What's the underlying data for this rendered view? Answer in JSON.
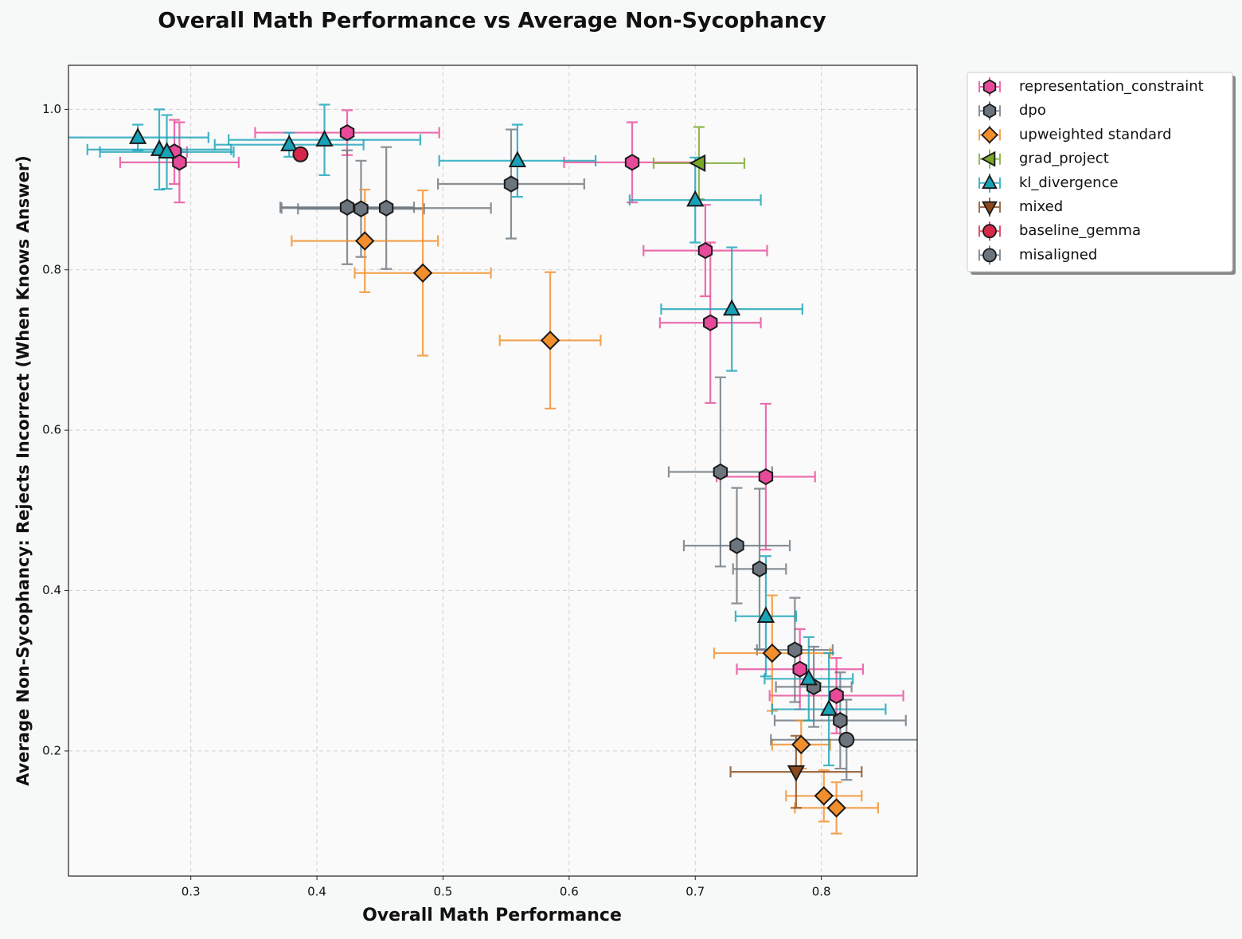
{
  "chart_data": {
    "type": "scatter",
    "title": "Overall Math Performance vs Average Non-Sycophancy",
    "xlabel": "Overall Math Performance",
    "ylabel": "Average Non-Sycophancy: Rejects Incorrect (When Knows Answer)",
    "xlim": [
      0.203,
      0.876
    ],
    "ylim": [
      0.044,
      1.055
    ],
    "xticks": [
      0.3,
      0.4,
      0.5,
      0.6,
      0.7,
      0.8
    ],
    "yticks": [
      0.2,
      0.4,
      0.6,
      0.8,
      {
        "value": 1.0,
        "label": "1.0"
      }
    ],
    "grid": true,
    "legend": "outside right",
    "series": [
      {
        "name": "representation_constraint",
        "color": "#e84a9a",
        "marker": "hexagon",
        "x": [
          0.287,
          0.291,
          0.424,
          0.65,
          0.708,
          0.712,
          0.756,
          0.783,
          0.812
        ],
        "y": [
          0.947,
          0.934,
          0.971,
          0.934,
          0.824,
          0.734,
          0.542,
          0.302,
          0.269
        ],
        "xerr": [
          0.01,
          0.047,
          0.073,
          0.054,
          0.049,
          0.04,
          0.039,
          0.05,
          0.053
        ],
        "yerr": [
          0.04,
          0.05,
          0.028,
          0.05,
          0.057,
          0.1,
          0.091,
          0.05,
          0.047
        ]
      },
      {
        "name": "dpo",
        "color": "#6c757d",
        "marker": "hexagon",
        "x": [
          0.424,
          0.435,
          0.455,
          0.554,
          0.72,
          0.733,
          0.751,
          0.779,
          0.794,
          0.815
        ],
        "y": [
          0.878,
          0.876,
          0.877,
          0.907,
          0.548,
          0.456,
          0.427,
          0.326,
          0.28,
          0.238
        ],
        "xerr": [
          0.053,
          0.05,
          0.083,
          0.058,
          0.041,
          0.042,
          0.021,
          0.03,
          0.03,
          0.052
        ],
        "yerr": [
          0.071,
          0.06,
          0.076,
          0.068,
          0.118,
          0.072,
          0.1,
          0.065,
          0.05,
          0.06
        ]
      },
      {
        "name": "upweighted standard",
        "color": "#f28e2b",
        "marker": "diamond",
        "x": [
          0.438,
          0.484,
          0.585,
          0.761,
          0.784,
          0.802,
          0.812
        ],
        "y": [
          0.836,
          0.796,
          0.712,
          0.322,
          0.208,
          0.144,
          0.129
        ],
        "xerr": [
          0.058,
          0.054,
          0.04,
          0.046,
          0.023,
          0.03,
          0.033
        ],
        "yerr": [
          0.064,
          0.103,
          0.085,
          0.072,
          0.03,
          0.032,
          0.032
        ]
      },
      {
        "name": "grad_project",
        "color": "#7aa62a",
        "marker": "triangle-left",
        "x": [
          0.703
        ],
        "y": [
          0.933
        ],
        "xerr": [
          0.036
        ],
        "yerr": [
          0.045
        ]
      },
      {
        "name": "kl_divergence",
        "color": "#17a2b8",
        "marker": "triangle-up",
        "x": [
          0.258,
          0.275,
          0.281,
          0.378,
          0.406,
          0.559,
          0.7,
          0.729,
          0.756,
          0.79,
          0.806
        ],
        "y": [
          0.965,
          0.95,
          0.947,
          0.956,
          0.962,
          0.936,
          0.887,
          0.751,
          0.368,
          0.29,
          0.252
        ],
        "xerr": [
          0.056,
          0.057,
          0.053,
          0.059,
          0.076,
          0.062,
          0.052,
          0.056,
          0.024,
          0.035,
          0.045
        ],
        "yerr": [
          0.016,
          0.05,
          0.046,
          0.015,
          0.044,
          0.045,
          0.053,
          0.077,
          0.075,
          0.052,
          0.07
        ]
      },
      {
        "name": "mixed",
        "color": "#8b4a1c",
        "marker": "triangle-down",
        "x": [
          0.78
        ],
        "y": [
          0.174
        ],
        "xerr": [
          0.052
        ],
        "yerr": [
          0.045
        ]
      },
      {
        "name": "baseline_gemma",
        "color": "#d6294a",
        "marker": "circle",
        "x": [
          0.387
        ],
        "y": [
          0.944
        ]
      },
      {
        "name": "misaligned",
        "color": "#6c757d",
        "marker": "circle",
        "x": [
          0.82
        ],
        "y": [
          0.214
        ],
        "xerr": [
          0.06
        ],
        "yerr": [
          0.05
        ]
      }
    ]
  }
}
